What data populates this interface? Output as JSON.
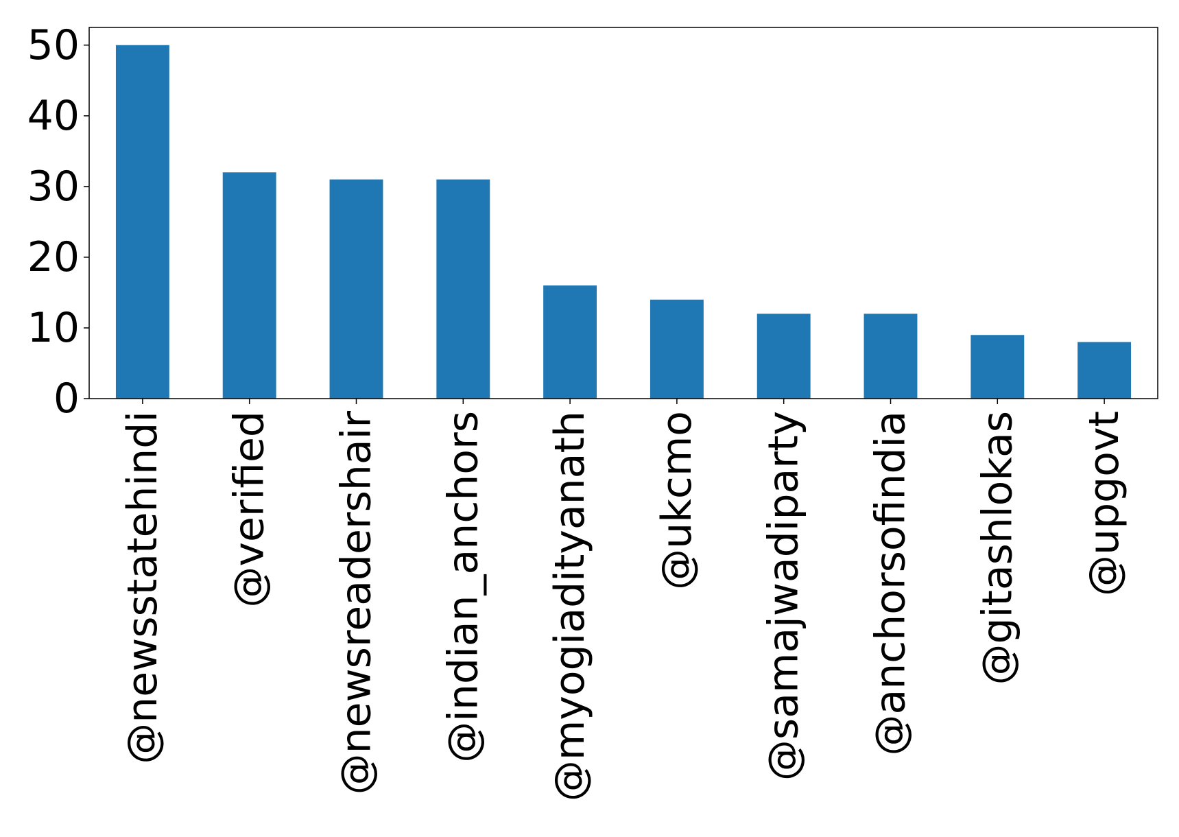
{
  "chart_data": {
    "type": "bar",
    "title": "",
    "xlabel": "",
    "ylabel": "",
    "categories": [
      "@newsstatehindi",
      "@verified",
      "@newsreadershair",
      "@indian_anchors",
      "@myogiadityanath",
      "@ukcmo",
      "@samajwadiparty",
      "@anchorsofindia",
      "@gitashlokas",
      "@upgovt"
    ],
    "values": [
      50,
      32,
      31,
      31,
      16,
      14,
      12,
      12,
      9,
      8
    ],
    "ylim": [
      0,
      52.5
    ],
    "yticks": [
      0,
      10,
      20,
      30,
      40,
      50
    ],
    "grid": false,
    "legend": "none",
    "bar_color": "#1f77b4"
  }
}
